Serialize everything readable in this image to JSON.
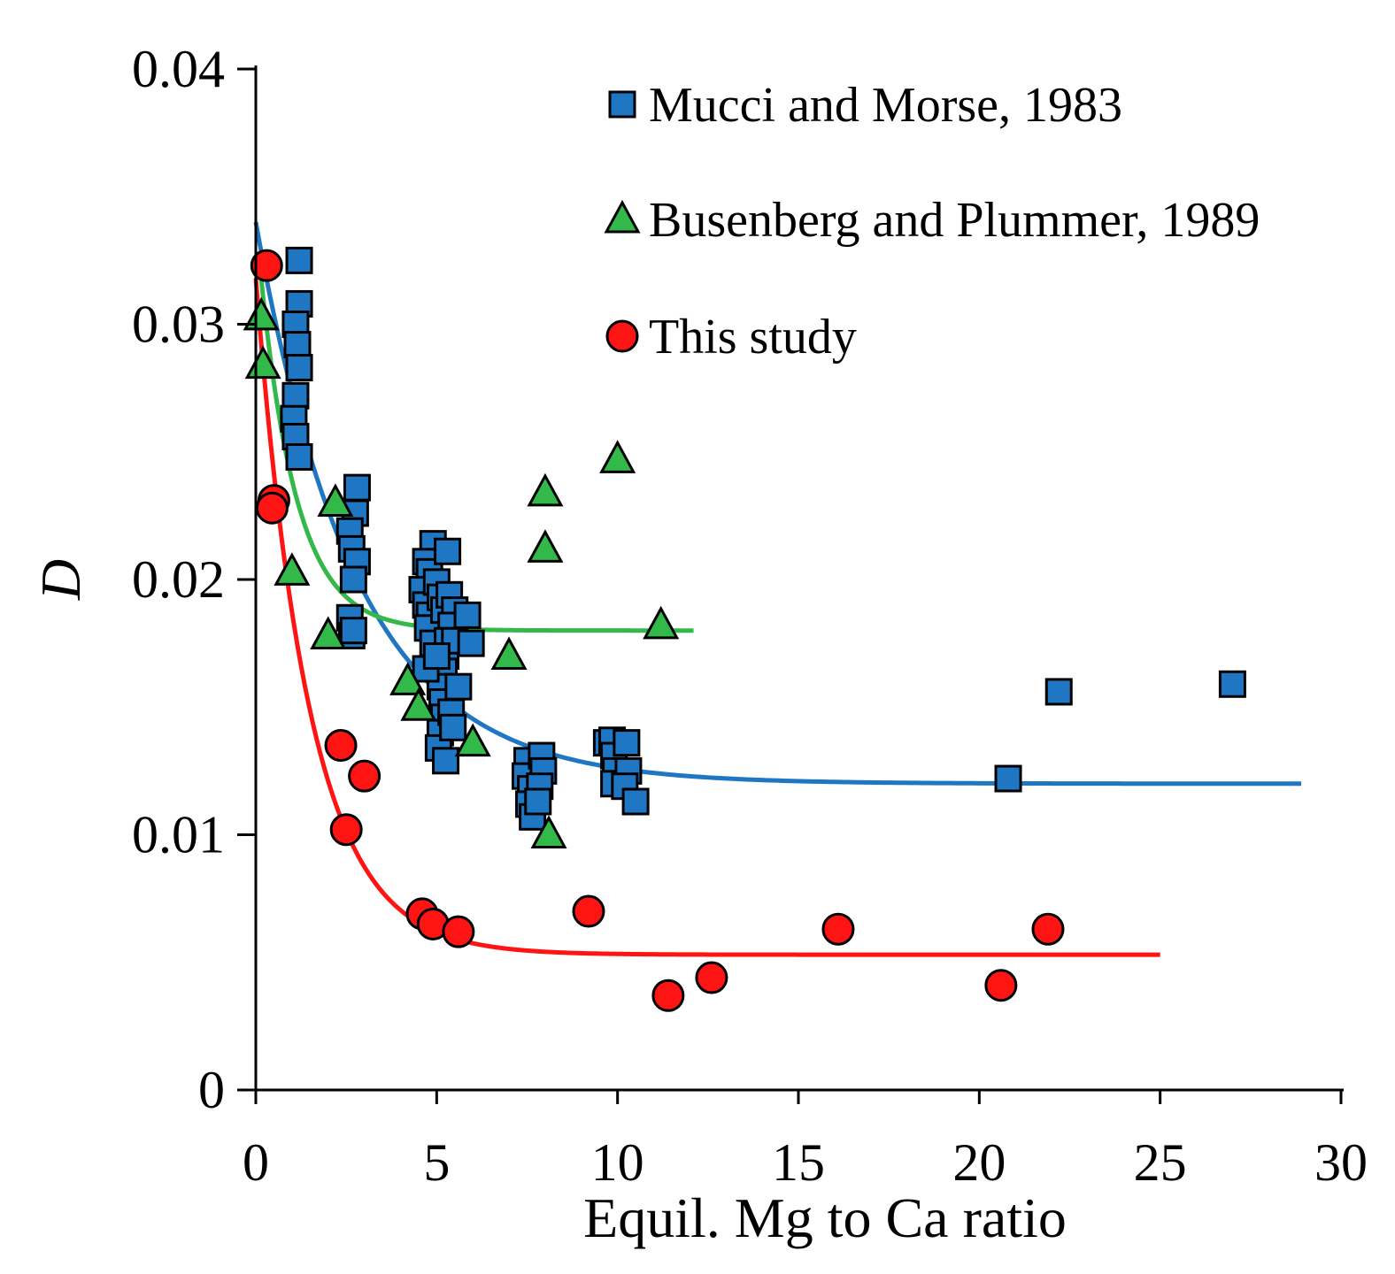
{
  "chart_data": {
    "type": "scatter",
    "title": "",
    "xlabel": "Equil. Mg to Ca ratio",
    "ylabel": "D",
    "xlim": [
      0,
      30
    ],
    "ylim": [
      0,
      0.04
    ],
    "xticks": [
      0,
      5,
      10,
      15,
      20,
      25,
      30
    ],
    "yticks": [
      0,
      0.01,
      0.02,
      0.03,
      0.04
    ],
    "xtick_labels": [
      "0",
      "5",
      "10",
      "15",
      "20",
      "25",
      "30"
    ],
    "ytick_labels": [
      "0",
      "0.01",
      "0.02",
      "0.03",
      "0.04"
    ],
    "grid": false,
    "legend_position": "top-right",
    "series": [
      {
        "name": "Mucci and Morse, 1983",
        "marker": "square",
        "color": "#1f77c4",
        "fit": {
          "a": 0.012,
          "b": 0.022,
          "k": 0.36,
          "x_range": [
            0,
            28.9
          ]
        },
        "points": [
          [
            1.2,
            0.0325
          ],
          [
            1.2,
            0.0308
          ],
          [
            1.1,
            0.03
          ],
          [
            1.15,
            0.0292
          ],
          [
            1.2,
            0.0283
          ],
          [
            1.1,
            0.0272
          ],
          [
            1.05,
            0.0263
          ],
          [
            1.1,
            0.0256
          ],
          [
            1.2,
            0.0248
          ],
          [
            2.8,
            0.0236
          ],
          [
            2.75,
            0.0226
          ],
          [
            2.6,
            0.0219
          ],
          [
            2.65,
            0.0212
          ],
          [
            2.8,
            0.0207
          ],
          [
            2.7,
            0.02
          ],
          [
            2.6,
            0.0185
          ],
          [
            2.65,
            0.0178
          ],
          [
            2.7,
            0.018
          ],
          [
            4.9,
            0.0214
          ],
          [
            4.7,
            0.0207
          ],
          [
            4.8,
            0.0203
          ],
          [
            4.6,
            0.0196
          ],
          [
            4.7,
            0.019
          ],
          [
            4.8,
            0.0186
          ],
          [
            4.75,
            0.0181
          ],
          [
            4.9,
            0.0175
          ],
          [
            5.0,
            0.0199
          ],
          [
            5.1,
            0.0193
          ],
          [
            5.2,
            0.0188
          ],
          [
            5.3,
            0.0211
          ],
          [
            5.35,
            0.0194
          ],
          [
            5.5,
            0.0188
          ],
          [
            5.4,
            0.0182
          ],
          [
            5.3,
            0.0176
          ],
          [
            5.25,
            0.017
          ],
          [
            5.2,
            0.0164
          ],
          [
            5.1,
            0.0158
          ],
          [
            5.15,
            0.0152
          ],
          [
            5.2,
            0.0146
          ],
          [
            5.1,
            0.014
          ],
          [
            5.05,
            0.0134
          ],
          [
            5.25,
            0.0129
          ],
          [
            5.4,
            0.0148
          ],
          [
            5.45,
            0.0142
          ],
          [
            5.5,
            0.0176
          ],
          [
            5.85,
            0.0186
          ],
          [
            5.95,
            0.0175
          ],
          [
            5.6,
            0.0158
          ],
          [
            4.7,
            0.0165
          ],
          [
            5.0,
            0.017
          ],
          [
            7.5,
            0.0129
          ],
          [
            7.45,
            0.0123
          ],
          [
            7.6,
            0.0118
          ],
          [
            7.55,
            0.0112
          ],
          [
            7.65,
            0.0107
          ],
          [
            7.9,
            0.0131
          ],
          [
            7.95,
            0.0125
          ],
          [
            7.85,
            0.0119
          ],
          [
            7.8,
            0.0113
          ],
          [
            9.7,
            0.0136
          ],
          [
            9.85,
            0.0137
          ],
          [
            9.9,
            0.0131
          ],
          [
            9.95,
            0.0125
          ],
          [
            9.9,
            0.012
          ],
          [
            10.25,
            0.0136
          ],
          [
            10.3,
            0.0125
          ],
          [
            10.2,
            0.0119
          ],
          [
            10.5,
            0.0113
          ],
          [
            20.8,
            0.0122
          ],
          [
            22.2,
            0.0156
          ],
          [
            27.0,
            0.0159
          ]
        ]
      },
      {
        "name": "Busenberg and Plummer, 1989",
        "marker": "triangle",
        "color": "#33b84a",
        "fit": {
          "a": 0.018,
          "b": 0.016,
          "k": 1.0,
          "x_range": [
            0.15,
            12.1
          ]
        },
        "points": [
          [
            0.15,
            0.0303
          ],
          [
            0.2,
            0.0284
          ],
          [
            2.2,
            0.023
          ],
          [
            1.0,
            0.0203
          ],
          [
            2.0,
            0.0178
          ],
          [
            4.2,
            0.016
          ],
          [
            4.5,
            0.015
          ],
          [
            6.0,
            0.0136
          ],
          [
            7.0,
            0.017
          ],
          [
            8.0,
            0.0234
          ],
          [
            8.0,
            0.0212
          ],
          [
            10.0,
            0.0247
          ],
          [
            11.2,
            0.0182
          ],
          [
            8.1,
            0.01
          ]
        ]
      },
      {
        "name": "This study",
        "marker": "circle",
        "color": "#ff1414",
        "fit": {
          "a": 0.0053,
          "b": 0.0265,
          "k": 0.68,
          "x_range": [
            0,
            25
          ]
        },
        "points": [
          [
            0.3,
            0.0323
          ],
          [
            0.5,
            0.0231
          ],
          [
            0.45,
            0.0228
          ],
          [
            2.35,
            0.0135
          ],
          [
            3.0,
            0.0123
          ],
          [
            2.5,
            0.0102
          ],
          [
            4.6,
            0.0069
          ],
          [
            4.9,
            0.0065
          ],
          [
            5.6,
            0.0062
          ],
          [
            9.2,
            0.007
          ],
          [
            11.4,
            0.0037
          ],
          [
            12.6,
            0.0044
          ],
          [
            16.1,
            0.0063
          ],
          [
            20.6,
            0.0041
          ],
          [
            21.9,
            0.0063
          ]
        ]
      }
    ]
  }
}
